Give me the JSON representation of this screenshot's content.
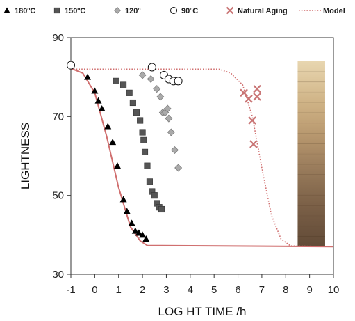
{
  "chart_data": {
    "type": "scatter",
    "title": "",
    "xlabel": "LOG HT TIME /h",
    "ylabel": "LIGHTNESS",
    "xlim": [
      -1,
      10
    ],
    "ylim": [
      30,
      90
    ],
    "x_ticks": [
      "-1",
      "0",
      "1",
      "2",
      "3",
      "4",
      "5",
      "6",
      "7",
      "8",
      "9",
      "10"
    ],
    "y_ticks": [
      "30",
      "50",
      "70",
      "90"
    ],
    "grid": false,
    "legend_position": "top",
    "legend": [
      {
        "label": "180ºC",
        "marker": "triangle"
      },
      {
        "label": "150ºC",
        "marker": "square"
      },
      {
        "label": "120º",
        "marker": "diamond"
      },
      {
        "label": "90ºC",
        "marker": "circle"
      },
      {
        "label": "Natural Aging",
        "marker": "cross"
      },
      {
        "label": "Model",
        "marker": "dotted-line"
      }
    ],
    "series": [
      {
        "name": "180ºC",
        "marker": "triangle",
        "color": "#000000",
        "points": [
          [
            -0.3,
            80.0
          ],
          [
            0.0,
            76.5
          ],
          [
            0.15,
            74.0
          ],
          [
            0.3,
            72.0
          ],
          [
            0.55,
            67.5
          ],
          [
            0.75,
            63.5
          ],
          [
            0.95,
            57.5
          ],
          [
            1.2,
            49.0
          ],
          [
            1.35,
            46.0
          ],
          [
            1.55,
            43.0
          ],
          [
            1.7,
            41.0
          ],
          [
            1.85,
            40.5
          ],
          [
            2.0,
            40.0
          ],
          [
            2.15,
            39.0
          ]
        ]
      },
      {
        "name": "150ºC",
        "marker": "square",
        "color": "#555555",
        "points": [
          [
            0.9,
            79.0
          ],
          [
            1.2,
            78.0
          ],
          [
            1.45,
            76.0
          ],
          [
            1.6,
            73.5
          ],
          [
            1.75,
            71.0
          ],
          [
            1.9,
            69.0
          ],
          [
            2.0,
            66.0
          ],
          [
            2.05,
            64.0
          ],
          [
            2.1,
            61.0
          ],
          [
            2.2,
            57.5
          ],
          [
            2.3,
            53.5
          ],
          [
            2.4,
            51.0
          ],
          [
            2.5,
            50.0
          ],
          [
            2.6,
            48.0
          ],
          [
            2.7,
            47.0
          ],
          [
            2.8,
            46.5
          ]
        ]
      },
      {
        "name": "120º",
        "marker": "diamond",
        "color": "#aaaaaa",
        "points": [
          [
            2.0,
            80.5
          ],
          [
            2.35,
            79.5
          ],
          [
            2.6,
            77.0
          ],
          [
            2.75,
            75.0
          ],
          [
            2.85,
            71.0
          ],
          [
            2.95,
            71.0
          ],
          [
            3.05,
            72.0
          ],
          [
            3.1,
            69.5
          ],
          [
            3.2,
            66.0
          ],
          [
            3.35,
            61.5
          ],
          [
            3.5,
            57.0
          ]
        ]
      },
      {
        "name": "90ºC",
        "marker": "circle",
        "color": "#ffffff",
        "points": [
          [
            -1.0,
            83.0
          ],
          [
            2.4,
            82.5
          ],
          [
            2.9,
            80.5
          ],
          [
            3.1,
            79.5
          ],
          [
            3.3,
            79.0
          ],
          [
            3.5,
            79.0
          ]
        ]
      },
      {
        "name": "Natural Aging",
        "marker": "cross",
        "color": "#c97575",
        "points": [
          [
            6.25,
            76.0
          ],
          [
            6.45,
            74.5
          ],
          [
            6.6,
            69.0
          ],
          [
            6.65,
            63.0
          ],
          [
            6.8,
            77.0
          ],
          [
            6.8,
            75.0
          ]
        ]
      }
    ],
    "curves": [
      {
        "style": "solid",
        "color": "#d06f6f",
        "points": [
          [
            -1.0,
            82.2
          ],
          [
            -0.5,
            81.0
          ],
          [
            0.0,
            76.0
          ],
          [
            0.5,
            65.0
          ],
          [
            1.0,
            52.0
          ],
          [
            1.5,
            42.0
          ],
          [
            1.9,
            38.5
          ],
          [
            2.2,
            37.3
          ],
          [
            10.0,
            37.0
          ]
        ]
      },
      {
        "name": "Model",
        "style": "dotted",
        "color": "#d06f6f",
        "points": [
          [
            -1.0,
            82.0
          ],
          [
            5.2,
            82.0
          ],
          [
            5.7,
            81.0
          ],
          [
            6.2,
            78.0
          ],
          [
            6.6,
            70.0
          ],
          [
            7.0,
            57.0
          ],
          [
            7.4,
            45.0
          ],
          [
            7.8,
            39.0
          ],
          [
            8.2,
            37.2
          ],
          [
            10.0,
            37.0
          ]
        ]
      }
    ],
    "color_bar": {
      "x_range": [
        8.5,
        9.65
      ],
      "y_range": [
        37.0,
        84.0
      ],
      "colors": [
        "#e8d6b0",
        "#dcc59b",
        "#cfb386",
        "#c1a277",
        "#b09069",
        "#9d7f5e",
        "#8b6f52",
        "#7b6047",
        "#6e553f",
        "#624b37"
      ]
    }
  }
}
